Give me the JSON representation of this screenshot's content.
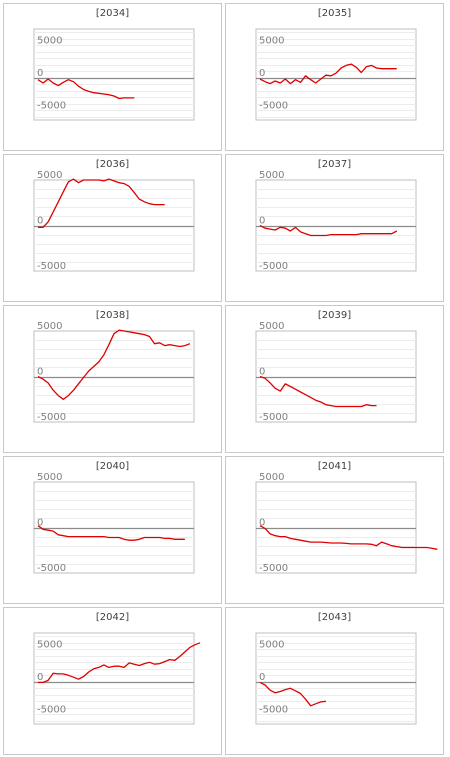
{
  "chart_data": [
    {
      "type": "line",
      "title": "[2034]",
      "series_color": "#e00000",
      "ylim": [
        -6500,
        7500
      ],
      "yticks": [
        5000,
        0,
        -5000
      ],
      "grid": true,
      "x": [
        0,
        1,
        2,
        3,
        4,
        5,
        6,
        7,
        8,
        9,
        10,
        11,
        12,
        13,
        14,
        15,
        16,
        17,
        18,
        19
      ],
      "values": [
        -300,
        -800,
        -200,
        -800,
        -1200,
        -700,
        -300,
        -600,
        -1300,
        -1800,
        -2100,
        -2300,
        -2400,
        -2500,
        -2600,
        -2800,
        -3200,
        -3100,
        -3100,
        -3100
      ]
    },
    {
      "type": "line",
      "title": "[2035]",
      "series_color": "#e00000",
      "ylim": [
        -6500,
        7500
      ],
      "yticks": [
        5000,
        0,
        -5000
      ],
      "grid": true,
      "x": [
        0,
        1,
        2,
        3,
        4,
        5,
        6,
        7,
        8,
        9,
        10,
        11,
        12,
        13,
        14,
        15,
        16,
        17,
        18,
        19,
        20,
        21,
        22,
        23,
        24,
        25,
        26,
        27
      ],
      "values": [
        -200,
        -600,
        -900,
        -500,
        -800,
        -200,
        -900,
        -300,
        -700,
        300,
        -300,
        -800,
        -200,
        400,
        300,
        700,
        1500,
        1900,
        2100,
        1600,
        800,
        1700,
        1900,
        1500,
        1400,
        1400,
        1400,
        1400
      ]
    },
    {
      "type": "line",
      "title": "[2036]",
      "series_color": "#e00000",
      "ylim": [
        -5000,
        5000
      ],
      "yticks": [
        5000,
        0,
        -5000
      ],
      "grid": true,
      "x": [
        0,
        1,
        2,
        3,
        4,
        5,
        6,
        7,
        8,
        9,
        10,
        11,
        12,
        13,
        14,
        15,
        16,
        17,
        18,
        19,
        20,
        21,
        22,
        23,
        24,
        25
      ],
      "values": [
        -200,
        -200,
        400,
        1500,
        2600,
        3700,
        4800,
        5100,
        4700,
        5000,
        5000,
        5000,
        5000,
        4900,
        5100,
        4900,
        4700,
        4600,
        4300,
        3600,
        2900,
        2600,
        2400,
        2300,
        2300,
        2300
      ]
    },
    {
      "type": "line",
      "title": "[2037]",
      "series_color": "#e00000",
      "ylim": [
        -5000,
        5000
      ],
      "yticks": [
        5000,
        0,
        -5000
      ],
      "grid": true,
      "x": [
        0,
        1,
        2,
        3,
        4,
        5,
        6,
        7,
        8,
        9,
        10,
        11,
        12,
        13,
        14,
        15,
        16,
        17,
        18,
        19,
        20,
        21,
        22,
        23,
        24,
        25,
        26,
        27
      ],
      "values": [
        0,
        -300,
        -400,
        -500,
        -200,
        -300,
        -600,
        -200,
        -700,
        -900,
        -1100,
        -1100,
        -1100,
        -1100,
        -1000,
        -1000,
        -1000,
        -1000,
        -1000,
        -1000,
        -900,
        -900,
        -900,
        -900,
        -900,
        -900,
        -900,
        -600
      ]
    },
    {
      "type": "line",
      "title": "[2038]",
      "series_color": "#e00000",
      "ylim": [
        -5000,
        5000
      ],
      "yticks": [
        5000,
        0,
        -5000
      ],
      "grid": true,
      "x": [
        0,
        1,
        2,
        3,
        4,
        5,
        6,
        7,
        8,
        9,
        10,
        11,
        12,
        13,
        14,
        15,
        16,
        17,
        18,
        19,
        20,
        21,
        22,
        23,
        24,
        25,
        26,
        27,
        28,
        29,
        30
      ],
      "values": [
        0,
        -300,
        -700,
        -1500,
        -2100,
        -2500,
        -2100,
        -1500,
        -800,
        -100,
        600,
        1100,
        1600,
        2400,
        3500,
        4700,
        5100,
        5000,
        4900,
        4800,
        4700,
        4600,
        4400,
        3600,
        3700,
        3400,
        3500,
        3400,
        3300,
        3400,
        3600
      ]
    },
    {
      "type": "line",
      "title": "[2039]",
      "series_color": "#e00000",
      "ylim": [
        -5000,
        5000
      ],
      "yticks": [
        5000,
        0,
        -5000
      ],
      "grid": true,
      "x": [
        0,
        1,
        2,
        3,
        4,
        5,
        6,
        7,
        8,
        9,
        10,
        11,
        12,
        13,
        14,
        15,
        16,
        17,
        18,
        19,
        20,
        21,
        22,
        23
      ],
      "values": [
        0,
        -200,
        -700,
        -1300,
        -1600,
        -800,
        -1100,
        -1400,
        -1700,
        -2000,
        -2300,
        -2600,
        -2800,
        -3100,
        -3200,
        -3300,
        -3300,
        -3300,
        -3300,
        -3300,
        -3300,
        -3100,
        -3200,
        -3200
      ]
    },
    {
      "type": "line",
      "title": "[2040]",
      "series_color": "#e00000",
      "ylim": [
        -5000,
        5000
      ],
      "yticks": [
        5000,
        0,
        -5000
      ],
      "grid": true,
      "x": [
        0,
        1,
        2,
        3,
        4,
        5,
        6,
        7,
        8,
        9,
        10,
        11,
        12,
        13,
        14,
        15,
        16,
        17,
        18,
        19,
        20,
        21,
        22,
        23,
        24,
        25,
        26,
        27,
        28,
        29
      ],
      "values": [
        200,
        -200,
        -300,
        -400,
        -800,
        -900,
        -1000,
        -1000,
        -1000,
        -1000,
        -1000,
        -1000,
        -1000,
        -1000,
        -1100,
        -1100,
        -1100,
        -1300,
        -1400,
        -1400,
        -1300,
        -1100,
        -1100,
        -1100,
        -1100,
        -1200,
        -1200,
        -1300,
        -1300,
        -1300
      ]
    },
    {
      "type": "line",
      "title": "[2041]",
      "series_color": "#e00000",
      "ylim": [
        -5000,
        5000
      ],
      "yticks": [
        5000,
        0,
        -5000
      ],
      "grid": true,
      "x": [
        0,
        1,
        2,
        3,
        4,
        5,
        6,
        7,
        8,
        9,
        10,
        11,
        12,
        13,
        14,
        15,
        16,
        17,
        18,
        19,
        20,
        21,
        22,
        23,
        24,
        25,
        26,
        27,
        28,
        29,
        30,
        31,
        32,
        33,
        34,
        35
      ],
      "values": [
        200,
        -100,
        -700,
        -900,
        -1000,
        -1000,
        -1200,
        -1300,
        -1400,
        -1500,
        -1600,
        -1600,
        -1600,
        -1650,
        -1700,
        -1700,
        -1700,
        -1750,
        -1800,
        -1800,
        -1800,
        -1800,
        -1850,
        -2000,
        -1600,
        -1800,
        -2000,
        -2100,
        -2200,
        -2200,
        -2200,
        -2200,
        -2200,
        -2200,
        -2300,
        -2400
      ]
    },
    {
      "type": "line",
      "title": "[2042]",
      "series_color": "#e00000",
      "ylim": [
        -6500,
        7500
      ],
      "yticks": [
        5000,
        0,
        -5000
      ],
      "grid": true,
      "x": [
        0,
        1,
        2,
        3,
        4,
        5,
        6,
        7,
        8,
        9,
        10,
        11,
        12,
        13,
        14,
        15,
        16,
        17,
        18,
        19,
        20,
        21,
        22,
        23,
        24,
        25,
        26,
        27,
        28,
        29,
        30,
        31,
        32
      ],
      "values": [
        -100,
        -100,
        200,
        1300,
        1200,
        1200,
        1000,
        700,
        400,
        800,
        1500,
        2000,
        2200,
        2600,
        2200,
        2400,
        2400,
        2200,
        2900,
        2700,
        2500,
        2800,
        3000,
        2700,
        2800,
        3100,
        3400,
        3300,
        3900,
        4600,
        5300,
        5700,
        6000
      ]
    },
    {
      "type": "line",
      "title": "[2043]",
      "series_color": "#e00000",
      "ylim": [
        -6500,
        7500
      ],
      "yticks": [
        5000,
        0,
        -5000
      ],
      "grid": true,
      "x": [
        0,
        1,
        2,
        3,
        4,
        5,
        6,
        7,
        8,
        9,
        10,
        11,
        12,
        13
      ],
      "values": [
        -100,
        -500,
        -1300,
        -1700,
        -1500,
        -1200,
        -1000,
        -1400,
        -1800,
        -2700,
        -3700,
        -3400,
        -3100,
        -3000
      ]
    }
  ]
}
